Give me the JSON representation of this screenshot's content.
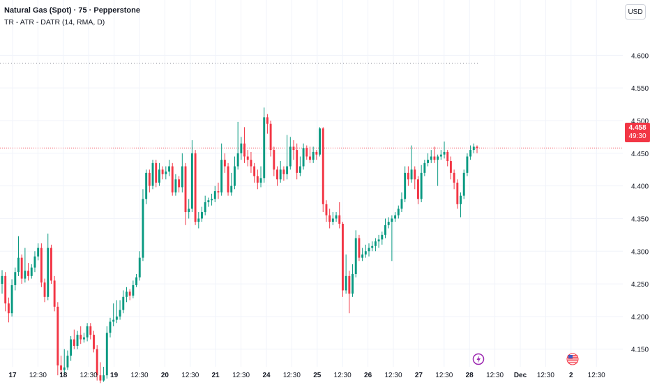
{
  "header": {
    "title": "Natural Gas (Spot) · 75 · Pepperstone",
    "indicator": "TR - ATR - DATR (14, RMA, D)",
    "currency": "USD"
  },
  "last_price": {
    "value": "4.458",
    "countdown": "49:30"
  },
  "colors": {
    "up": "#089981",
    "down": "#f23645",
    "grid": "#f0f3fa",
    "axis_text": "#131722",
    "dotted_line": "#787b86",
    "event_purple": "#9c27b0"
  },
  "events": [
    {
      "icon": "lightning-icon",
      "x_label": "28"
    },
    {
      "icon": "us-flag-icon",
      "x_label": "12:30"
    }
  ],
  "chart_data": {
    "type": "candlestick",
    "title": "Natural Gas (Spot) · 75 · Pepperstone",
    "ylim": [
      4.123,
      4.642
    ],
    "y_ticks": [
      4.6,
      4.55,
      4.5,
      4.45,
      4.4,
      4.35,
      4.3,
      4.25,
      4.2,
      4.15
    ],
    "y_tick_labels": [
      "4.600",
      "4.550",
      "4.500",
      "4.450",
      "4.400",
      "4.350",
      "4.300",
      "4.250",
      "4.200",
      "4.150"
    ],
    "x_tick_labels": [
      "17",
      "12:30",
      "18",
      "12:30",
      "19",
      "12:30",
      "20",
      "12:30",
      "21",
      "12:30",
      "24",
      "12:30",
      "25",
      "12:30",
      "26",
      "12:30",
      "27",
      "12:30",
      "28",
      "12:30",
      "Dec",
      "12:30",
      "2",
      "12:30"
    ],
    "dotted_level": 4.588,
    "current_price": 4.458,
    "grid": true,
    "candles": [
      [
        4.25,
        4.262,
        4.235,
        4.271
      ],
      [
        4.262,
        4.22,
        4.208,
        4.268
      ],
      [
        4.22,
        4.205,
        4.191,
        4.229
      ],
      [
        4.205,
        4.248,
        4.2,
        4.257
      ],
      [
        4.248,
        4.268,
        4.24,
        4.275
      ],
      [
        4.268,
        4.29,
        4.262,
        4.323
      ],
      [
        4.29,
        4.258,
        4.25,
        4.295
      ],
      [
        4.258,
        4.27,
        4.252,
        4.305
      ],
      [
        4.27,
        4.262,
        4.255,
        4.282
      ],
      [
        4.262,
        4.275,
        4.258,
        4.28
      ],
      [
        4.275,
        4.292,
        4.268,
        4.3
      ],
      [
        4.292,
        4.305,
        4.286,
        4.312
      ],
      [
        4.305,
        4.252,
        4.245,
        4.312
      ],
      [
        4.252,
        4.23,
        4.222,
        4.258
      ],
      [
        4.23,
        4.305,
        4.225,
        4.327
      ],
      [
        4.305,
        4.255,
        4.25,
        4.31
      ],
      [
        4.255,
        4.215,
        4.208,
        4.262
      ],
      [
        4.215,
        4.125,
        4.11,
        4.222
      ],
      [
        4.125,
        4.118,
        4.112,
        4.14
      ],
      [
        4.118,
        4.122,
        4.112,
        4.15
      ],
      [
        4.122,
        4.14,
        4.118,
        4.148
      ],
      [
        4.14,
        4.165,
        4.132,
        4.17
      ],
      [
        4.165,
        4.155,
        4.15,
        4.18
      ],
      [
        4.155,
        4.172,
        4.15,
        4.178
      ],
      [
        4.172,
        4.165,
        4.158,
        4.185
      ],
      [
        4.165,
        4.168,
        4.16,
        4.175
      ],
      [
        4.168,
        4.185,
        4.162,
        4.19
      ],
      [
        4.185,
        4.172,
        4.165,
        4.19
      ],
      [
        4.172,
        4.15,
        4.145,
        4.178
      ],
      [
        4.15,
        4.11,
        4.102,
        4.156
      ],
      [
        4.11,
        4.102,
        4.098,
        4.13
      ],
      [
        4.102,
        4.11,
        4.1,
        4.123
      ],
      [
        4.11,
        4.175,
        4.105,
        4.185
      ],
      [
        4.175,
        4.192,
        4.168,
        4.198
      ],
      [
        4.192,
        4.195,
        4.185,
        4.22
      ],
      [
        4.195,
        4.2,
        4.19,
        4.225
      ],
      [
        4.2,
        4.21,
        4.195,
        4.225
      ],
      [
        4.21,
        4.23,
        4.205,
        4.24
      ],
      [
        4.23,
        4.238,
        4.222,
        4.245
      ],
      [
        4.238,
        4.232,
        4.225,
        4.242
      ],
      [
        4.232,
        4.248,
        4.228,
        4.255
      ],
      [
        4.248,
        4.26,
        4.245,
        4.265
      ],
      [
        4.26,
        4.29,
        4.255,
        4.3
      ],
      [
        4.29,
        4.38,
        4.285,
        4.395
      ],
      [
        4.38,
        4.42,
        4.372,
        4.425
      ],
      [
        4.42,
        4.4,
        4.39,
        4.425
      ],
      [
        4.4,
        4.435,
        4.395,
        4.44
      ],
      [
        4.435,
        4.405,
        4.398,
        4.44
      ],
      [
        4.405,
        4.425,
        4.4,
        4.435
      ],
      [
        4.425,
        4.418,
        4.41,
        4.43
      ],
      [
        4.418,
        4.422,
        4.41,
        4.43
      ],
      [
        4.422,
        4.43,
        4.415,
        4.44
      ],
      [
        4.43,
        4.39,
        4.385,
        4.435
      ],
      [
        4.39,
        4.41,
        4.385,
        4.418
      ],
      [
        4.41,
        4.398,
        4.39,
        4.415
      ],
      [
        4.398,
        4.43,
        4.39,
        4.45
      ],
      [
        4.43,
        4.36,
        4.34,
        4.435
      ],
      [
        4.36,
        4.365,
        4.35,
        4.38
      ],
      [
        4.365,
        4.45,
        4.36,
        4.47
      ],
      [
        4.45,
        4.345,
        4.34,
        4.455
      ],
      [
        4.345,
        4.35,
        4.335,
        4.36
      ],
      [
        4.35,
        4.36,
        4.345,
        4.368
      ],
      [
        4.36,
        4.375,
        4.355,
        4.385
      ],
      [
        4.375,
        4.378,
        4.368,
        4.382
      ],
      [
        4.378,
        4.38,
        4.37,
        4.388
      ],
      [
        4.38,
        4.392,
        4.375,
        4.4
      ],
      [
        4.392,
        4.39,
        4.38,
        4.405
      ],
      [
        4.39,
        4.44,
        4.385,
        4.465
      ],
      [
        4.44,
        4.43,
        4.42,
        4.45
      ],
      [
        4.43,
        4.39,
        4.385,
        4.435
      ],
      [
        4.39,
        4.4,
        4.385,
        4.42
      ],
      [
        4.4,
        4.43,
        4.395,
        4.445
      ],
      [
        4.43,
        4.45,
        4.425,
        4.498
      ],
      [
        4.45,
        4.465,
        4.44,
        4.475
      ],
      [
        4.465,
        4.445,
        4.435,
        4.49
      ],
      [
        4.445,
        4.44,
        4.43,
        4.455
      ],
      [
        4.44,
        4.43,
        4.42,
        4.452
      ],
      [
        4.43,
        4.415,
        4.405,
        4.435
      ],
      [
        4.415,
        4.405,
        4.395,
        4.425
      ],
      [
        4.405,
        4.412,
        4.398,
        4.43
      ],
      [
        4.412,
        4.505,
        4.405,
        4.52
      ],
      [
        4.505,
        4.495,
        4.48,
        4.51
      ],
      [
        4.495,
        4.455,
        4.445,
        4.5
      ],
      [
        4.455,
        4.425,
        4.415,
        4.46
      ],
      [
        4.425,
        4.41,
        4.4,
        4.43
      ],
      [
        4.41,
        4.425,
        4.405,
        4.438
      ],
      [
        4.425,
        4.418,
        4.408,
        4.43
      ],
      [
        4.418,
        4.43,
        4.41,
        4.478
      ],
      [
        4.43,
        4.46,
        4.425,
        4.475
      ],
      [
        4.46,
        4.455,
        4.44,
        4.47
      ],
      [
        4.455,
        4.42,
        4.41,
        4.465
      ],
      [
        4.42,
        4.43,
        4.415,
        4.445
      ],
      [
        4.43,
        4.458,
        4.425,
        4.465
      ],
      [
        4.458,
        4.445,
        4.44,
        4.462
      ],
      [
        4.445,
        4.44,
        4.435,
        4.46
      ],
      [
        4.44,
        4.452,
        4.435,
        4.46
      ],
      [
        4.452,
        4.448,
        4.44,
        4.455
      ],
      [
        4.448,
        4.488,
        4.445,
        4.49
      ],
      [
        4.488,
        4.372,
        4.36,
        4.49
      ],
      [
        4.372,
        4.355,
        4.345,
        4.378
      ],
      [
        4.355,
        4.345,
        4.335,
        4.365
      ],
      [
        4.345,
        4.35,
        4.34,
        4.36
      ],
      [
        4.35,
        4.355,
        4.345,
        4.36
      ],
      [
        4.355,
        4.342,
        4.335,
        4.375
      ],
      [
        4.342,
        4.24,
        4.23,
        4.345
      ],
      [
        4.24,
        4.262,
        4.235,
        4.295
      ],
      [
        4.262,
        4.235,
        4.205,
        4.27
      ],
      [
        4.235,
        4.265,
        4.23,
        4.28
      ],
      [
        4.265,
        4.32,
        4.26,
        4.332
      ],
      [
        4.32,
        4.29,
        4.285,
        4.325
      ],
      [
        4.29,
        4.295,
        4.285,
        4.305
      ],
      [
        4.295,
        4.3,
        4.29,
        4.31
      ],
      [
        4.3,
        4.305,
        4.292,
        4.312
      ],
      [
        4.305,
        4.308,
        4.3,
        4.315
      ],
      [
        4.308,
        4.315,
        4.3,
        4.32
      ],
      [
        4.315,
        4.318,
        4.305,
        4.325
      ],
      [
        4.318,
        4.325,
        4.31,
        4.33
      ],
      [
        4.325,
        4.34,
        4.32,
        4.35
      ],
      [
        4.34,
        4.345,
        4.335,
        4.352
      ],
      [
        4.345,
        4.35,
        4.285,
        4.355
      ],
      [
        4.35,
        4.355,
        4.345,
        4.36
      ],
      [
        4.355,
        4.365,
        4.35,
        4.37
      ],
      [
        4.365,
        4.38,
        4.36,
        4.39
      ],
      [
        4.38,
        4.42,
        4.375,
        4.43
      ],
      [
        4.42,
        4.41,
        4.4,
        4.43
      ],
      [
        4.41,
        4.425,
        4.405,
        4.462
      ],
      [
        4.425,
        4.41,
        4.395,
        4.43
      ],
      [
        4.41,
        4.38,
        4.372,
        4.415
      ],
      [
        4.38,
        4.42,
        4.375,
        4.432
      ],
      [
        4.42,
        4.435,
        4.415,
        4.44
      ],
      [
        4.435,
        4.44,
        4.43,
        4.45
      ],
      [
        4.44,
        4.445,
        4.435,
        4.455
      ],
      [
        4.445,
        4.44,
        4.435,
        4.46
      ],
      [
        4.44,
        4.445,
        4.4,
        4.448
      ],
      [
        4.445,
        4.448,
        4.44,
        4.455
      ],
      [
        4.448,
        4.452,
        4.442,
        4.468
      ],
      [
        4.452,
        4.438,
        4.43,
        4.455
      ],
      [
        4.438,
        4.42,
        4.41,
        4.445
      ],
      [
        4.42,
        4.405,
        4.395,
        4.425
      ],
      [
        4.405,
        4.372,
        4.365,
        4.41
      ],
      [
        4.372,
        4.385,
        4.352,
        4.39
      ],
      [
        4.385,
        4.42,
        4.38,
        4.425
      ],
      [
        4.42,
        4.445,
        4.415,
        4.45
      ],
      [
        4.445,
        4.455,
        4.44,
        4.462
      ],
      [
        4.455,
        4.46,
        4.45,
        4.465
      ],
      [
        4.46,
        4.458,
        4.45,
        4.462
      ]
    ]
  }
}
